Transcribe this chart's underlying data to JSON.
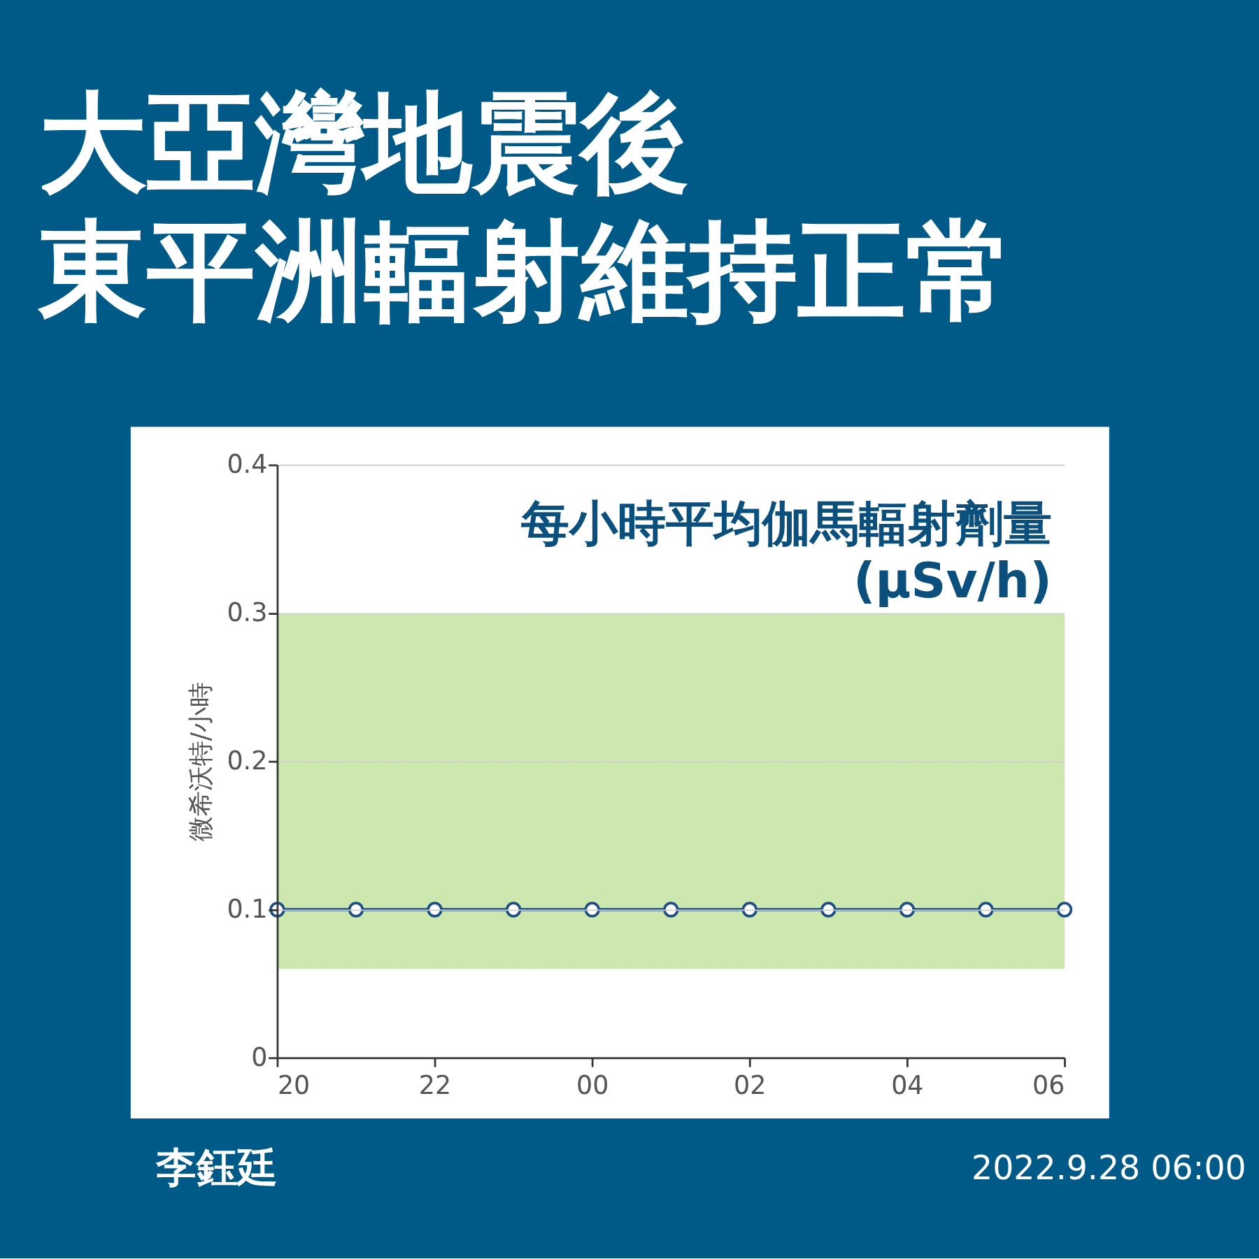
{
  "chart_data": {
    "type": "line",
    "title": [
      "大亞灣地震後",
      "東平洲輻射維持正常"
    ],
    "ylabel": "微希沃特/小時",
    "x": [
      "2022-09-27T20:00",
      "2022-09-27T21:00",
      "2022-09-27T22:00",
      "2022-09-27T23:00",
      "2022-09-28T00:00",
      "2022-09-28T01:00",
      "2022-09-28T02:00",
      "2022-09-28T03:00",
      "2022-09-28T04:00",
      "2022-09-28T05:00",
      "2022-09-28T06:00"
    ],
    "series": [
      {
        "color": "#1f4e82",
        "values": [
          0.1,
          0.1,
          0.1,
          0.1,
          0.1,
          0.1,
          0.1,
          0.1,
          0.1,
          0.1,
          0.1
        ]
      }
    ],
    "xlim": [
      "2022-09-27T20:00",
      "2022-09-28T06:00"
    ],
    "xticks": [
      {
        "value": "2022-09-27T20:00",
        "label": "20"
      },
      {
        "value": "2022-09-27T22:00",
        "label": "22"
      },
      {
        "value": "2022-09-28T00:00",
        "label": "00"
      },
      {
        "value": "2022-09-28T02:00",
        "label": "02"
      },
      {
        "value": "2022-09-28T04:00",
        "label": "04"
      },
      {
        "value": "2022-09-28T06:00",
        "label": "06"
      }
    ],
    "ylim": [
      0,
      0.4
    ],
    "yticks": [
      0,
      0.1,
      0.2,
      0.3,
      0.4
    ],
    "bands": [
      {
        "axis": "y",
        "from": 0.06,
        "to": 0.3,
        "color": "#c8e6a5"
      }
    ],
    "grid": "y",
    "marker": "circle",
    "line_style": "solid",
    "annotations": [
      "每小時平均伽馬輻射劑量",
      "(μSv/h)",
      "李鈺廷",
      "2022.9.28 06:00"
    ]
  }
}
